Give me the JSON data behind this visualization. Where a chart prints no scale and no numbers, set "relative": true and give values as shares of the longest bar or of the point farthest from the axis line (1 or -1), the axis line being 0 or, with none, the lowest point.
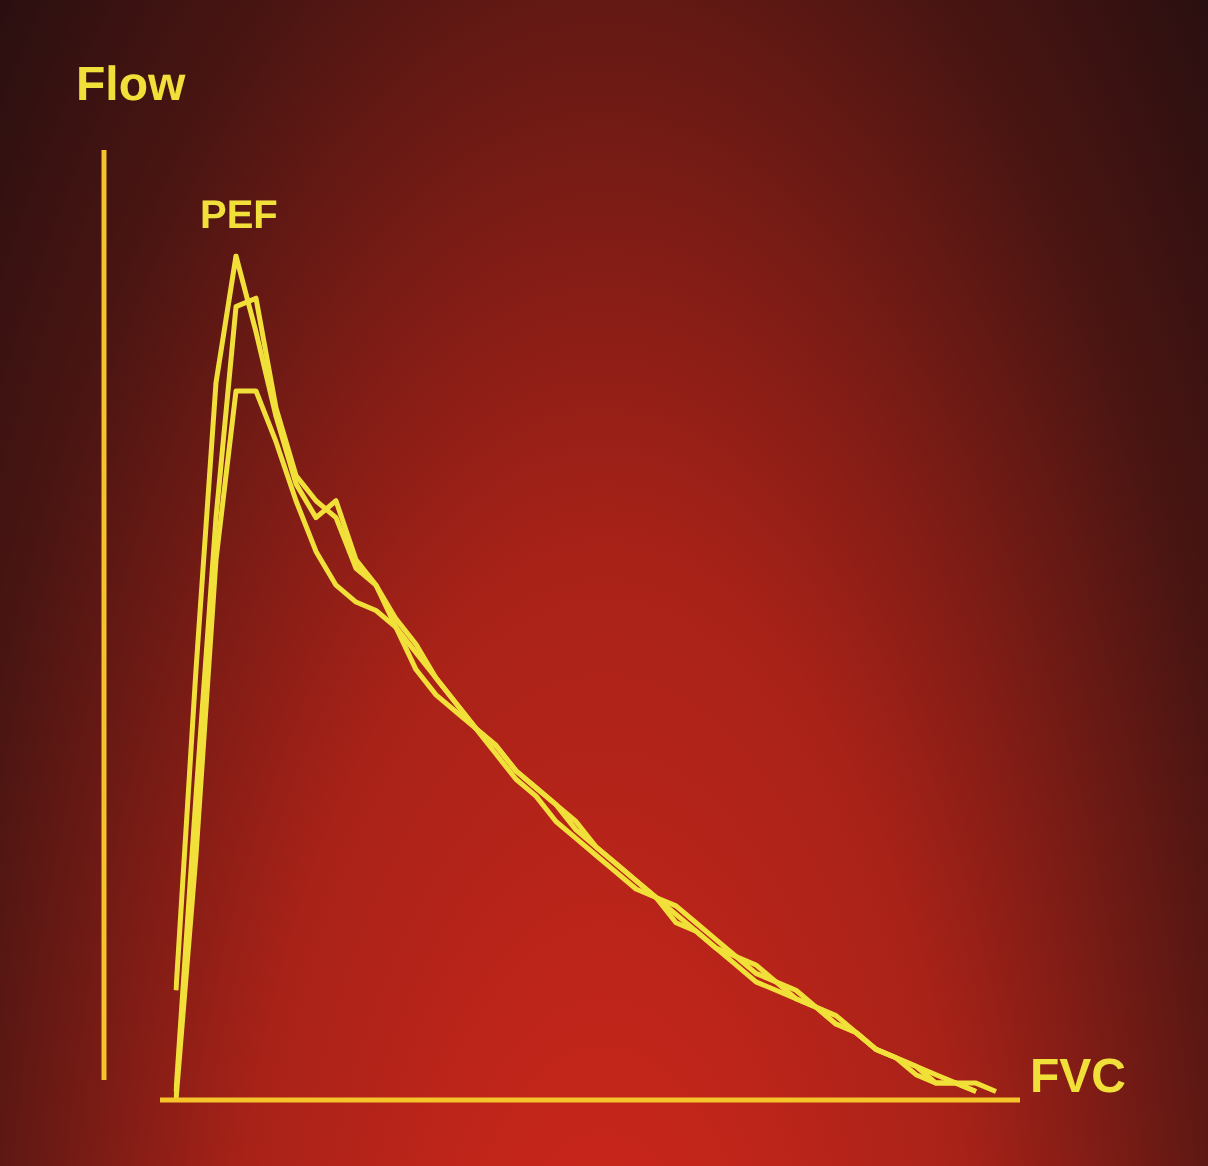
{
  "chart_data": {
    "type": "line",
    "relative": true,
    "xlabel": "FVC",
    "ylabel": "Flow",
    "legend": false,
    "marker": "none",
    "line_style": "solid",
    "annotations": [
      "PEF"
    ],
    "categories": [
      null,
      null,
      null,
      null,
      null,
      null,
      null,
      null,
      null,
      null,
      null,
      null,
      null,
      null,
      null,
      null,
      null,
      null,
      null,
      null,
      null,
      null,
      null,
      null,
      null,
      null,
      null,
      null,
      null,
      null,
      null,
      null,
      null,
      null,
      null,
      null,
      null,
      null,
      null,
      null,
      null,
      null
    ],
    "series": [
      {
        "color": "#f2e03a",
        "values": [
          0.13,
          0.51,
          0.85,
          1,
          0.91,
          0.81,
          0.73,
          0.69,
          0.71,
          0.64,
          0.61,
          0.57,
          0.54,
          0.5,
          0.47,
          0.44,
          0.41,
          0.38,
          0.36,
          0.33,
          0.31,
          0.29,
          0.27,
          0.25,
          0.24,
          0.22,
          0.2,
          0.18,
          0.17,
          0.15,
          0.14,
          0.12,
          0.11,
          0.09,
          0.08,
          0.06,
          0.05,
          0.04,
          0.02,
          0.02,
          0.01,
          null
        ]
      },
      {
        "color": "#f2e03a",
        "values": [
          0.01,
          0.36,
          0.69,
          0.94,
          0.95,
          0.82,
          0.74,
          0.71,
          0.69,
          0.63,
          0.61,
          0.56,
          0.53,
          0.5,
          0.47,
          0.44,
          0.42,
          0.39,
          0.37,
          0.35,
          0.32,
          0.3,
          0.28,
          0.26,
          0.24,
          0.23,
          0.21,
          0.19,
          0.17,
          0.16,
          0.14,
          0.13,
          0.11,
          0.1,
          0.08,
          0.06,
          0.05,
          0.03,
          0.02,
          0.02,
          0.01,
          null
        ]
      },
      {
        "color": "#f2e03a",
        "values": [
          0,
          0.29,
          0.64,
          0.84,
          0.84,
          0.78,
          0.71,
          0.65,
          0.61,
          0.59,
          0.58,
          0.56,
          0.51,
          0.48,
          0.46,
          0.44,
          0.42,
          0.39,
          0.37,
          0.35,
          0.33,
          0.3,
          0.28,
          0.26,
          0.24,
          0.21,
          0.2,
          0.18,
          0.16,
          0.14,
          0.13,
          0.12,
          0.11,
          0.09,
          0.08,
          0.06,
          0.05,
          0.04,
          0.03,
          0.02,
          0.02,
          0.01
        ]
      }
    ]
  }
}
